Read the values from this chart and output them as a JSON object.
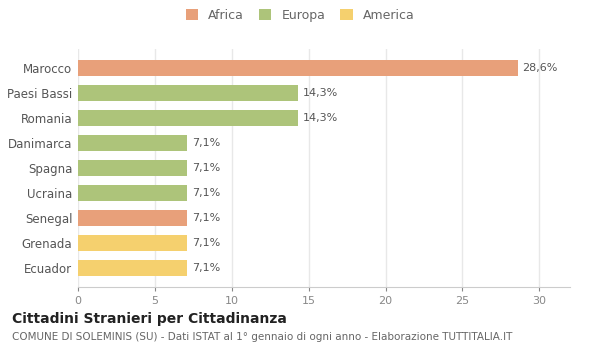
{
  "categories": [
    "Ecuador",
    "Grenada",
    "Senegal",
    "Ucraina",
    "Spagna",
    "Danimarca",
    "Romania",
    "Paesi Bassi",
    "Marocco"
  ],
  "values": [
    7.1,
    7.1,
    7.1,
    7.1,
    7.1,
    7.1,
    14.3,
    14.3,
    28.6
  ],
  "labels": [
    "7,1%",
    "7,1%",
    "7,1%",
    "7,1%",
    "7,1%",
    "7,1%",
    "14,3%",
    "14,3%",
    "28,6%"
  ],
  "colors": [
    "#f5d06e",
    "#f5d06e",
    "#e8a07a",
    "#adc47a",
    "#adc47a",
    "#adc47a",
    "#adc47a",
    "#adc47a",
    "#e8a07a"
  ],
  "legend": [
    {
      "label": "Africa",
      "color": "#e8a07a"
    },
    {
      "label": "Europa",
      "color": "#adc47a"
    },
    {
      "label": "America",
      "color": "#f5d06e"
    }
  ],
  "xlim": [
    0,
    32
  ],
  "xticks": [
    0,
    5,
    10,
    15,
    20,
    25,
    30
  ],
  "title": "Cittadini Stranieri per Cittadinanza",
  "subtitle": "COMUNE DI SOLEMINIS (SU) - Dati ISTAT al 1° gennaio di ogni anno - Elaborazione TUTTITALIA.IT",
  "background_color": "#ffffff",
  "plot_bg_color": "#ffffff",
  "grid_color": "#e8e8e8",
  "bar_height": 0.65,
  "label_fontsize": 8,
  "ytick_fontsize": 8.5,
  "xtick_fontsize": 8,
  "legend_fontsize": 9,
  "title_fontsize": 10,
  "subtitle_fontsize": 7.5
}
